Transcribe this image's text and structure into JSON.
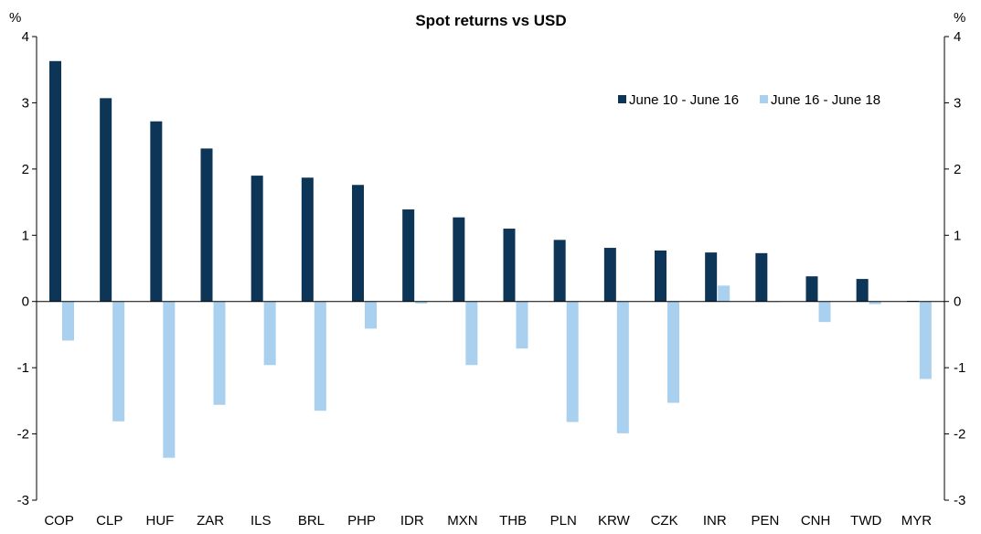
{
  "chart_data": {
    "type": "bar",
    "title": "Spot returns vs USD",
    "ylabel_left": "%",
    "ylabel_right": "%",
    "ylim": [
      -3,
      4
    ],
    "yticks": [
      -3,
      -2,
      -1,
      0,
      1,
      2,
      3,
      4
    ],
    "grid": false,
    "legend_position": "top-right",
    "categories": [
      "COP",
      "CLP",
      "HUF",
      "ZAR",
      "ILS",
      "BRL",
      "PHP",
      "IDR",
      "MXN",
      "THB",
      "PLN",
      "KRW",
      "CZK",
      "INR",
      "PEN",
      "CNH",
      "TWD",
      "MYR"
    ],
    "series": [
      {
        "name": "June 10 - June 16",
        "color": "#0d3558",
        "values": [
          3.63,
          3.07,
          2.72,
          2.31,
          1.9,
          1.87,
          1.76,
          1.39,
          1.27,
          1.1,
          0.93,
          0.81,
          0.77,
          0.74,
          0.73,
          0.38,
          0.34,
          0.01
        ]
      },
      {
        "name": "June 16 - June 18",
        "color": "#a9d0ee",
        "values": [
          -0.59,
          -1.81,
          -2.36,
          -1.56,
          -0.96,
          -1.65,
          -0.41,
          -0.03,
          -0.96,
          -0.71,
          -1.82,
          -1.99,
          -1.53,
          0.24,
          0.0,
          -0.31,
          -0.04,
          -1.17
        ]
      }
    ]
  }
}
